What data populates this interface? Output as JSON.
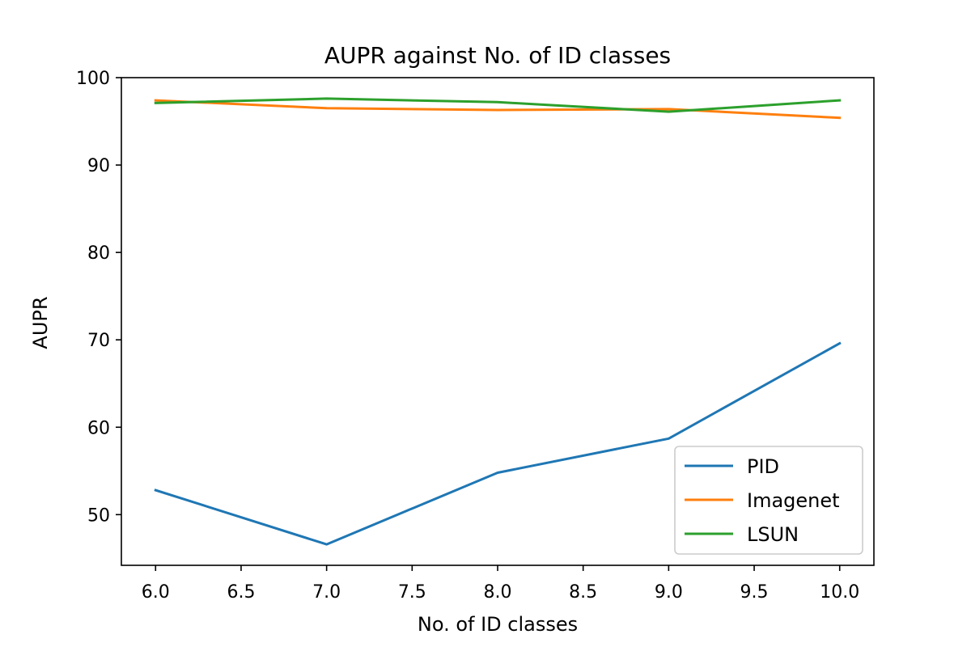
{
  "chart_data": {
    "type": "line",
    "title": "AUPR against No. of ID classes",
    "xlabel": "No. of ID classes",
    "ylabel": "AUPR",
    "x": [
      6.0,
      7.0,
      8.0,
      9.0,
      10.0
    ],
    "xlim": [
      5.8,
      10.2
    ],
    "ylim": [
      44.2,
      100
    ],
    "x_ticks": [
      "6.0",
      "6.5",
      "7.0",
      "7.5",
      "8.0",
      "8.5",
      "9.0",
      "9.5",
      "10.0"
    ],
    "y_ticks": [
      "50",
      "60",
      "70",
      "80",
      "90",
      "100"
    ],
    "grid": false,
    "legend_position": "lower-right",
    "series": [
      {
        "name": "PID",
        "color": "#1f77b4",
        "values": [
          52.8,
          46.6,
          54.8,
          58.7,
          69.6
        ]
      },
      {
        "name": "Imagenet",
        "color": "#ff7f0e",
        "values": [
          97.4,
          96.5,
          96.3,
          96.4,
          95.4
        ]
      },
      {
        "name": "LSUN",
        "color": "#2ca02c",
        "values": [
          97.1,
          97.6,
          97.2,
          96.1,
          97.4
        ]
      }
    ]
  }
}
